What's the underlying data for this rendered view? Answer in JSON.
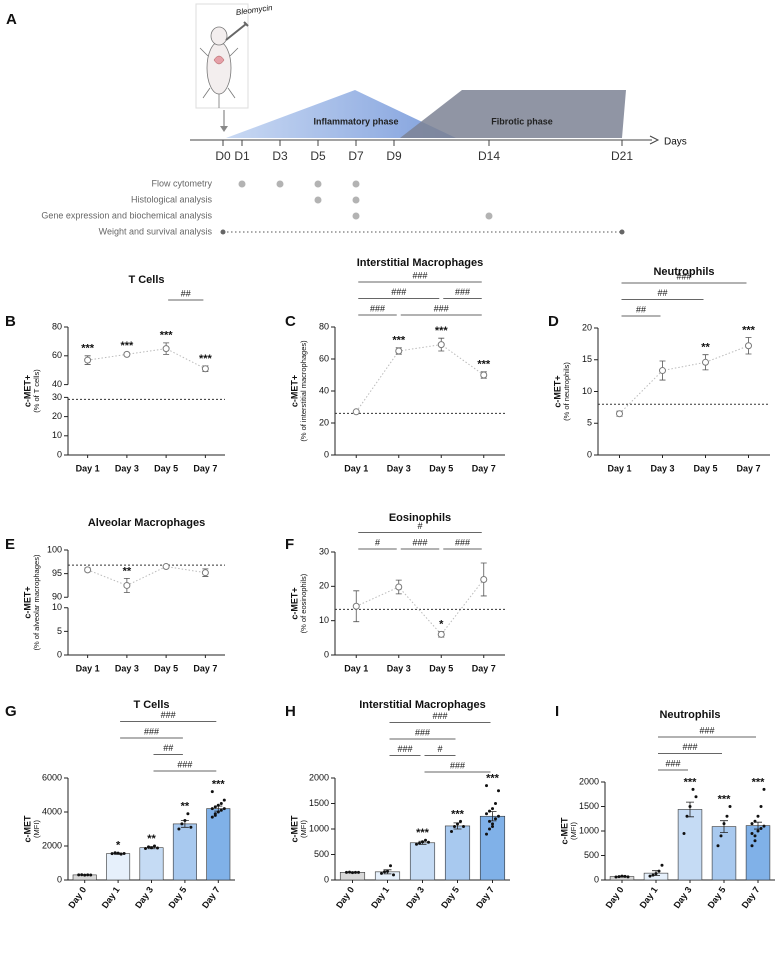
{
  "timeline": {
    "panel": "A",
    "annotation": "Bleomycin",
    "phases": [
      "Inflammatory phase",
      "Fibrotic phase"
    ],
    "axis_label": "Days",
    "days": [
      {
        "value": 0,
        "label": "D0"
      },
      {
        "value": 1,
        "label": "D1"
      },
      {
        "value": 3,
        "label": "D3"
      },
      {
        "value": 5,
        "label": "D5"
      },
      {
        "value": 7,
        "label": "D7"
      },
      {
        "value": 9,
        "label": "D9"
      },
      {
        "value": 14,
        "label": "D14"
      },
      {
        "value": 21,
        "label": "D21"
      }
    ],
    "assays": [
      {
        "label": "Flow cytometry",
        "days": [
          1,
          3,
          5,
          7
        ]
      },
      {
        "label": "Histological analysis",
        "days": [
          5,
          7
        ]
      },
      {
        "label": "Gene expression and biochemical analysis",
        "days": [
          7,
          14
        ]
      },
      {
        "label": "Weight and survival analysis",
        "span": [
          0,
          21
        ]
      }
    ]
  },
  "chart_data": [
    {
      "type": "line",
      "panel": "B",
      "title": "T Cells",
      "ylabel": "c-MET+",
      "ylabel_sub": "(% of T cells)",
      "color": "#7a7a7a",
      "categories": [
        "Day 1",
        "Day 3",
        "Day 5",
        "Day 7"
      ],
      "values": [
        57,
        61,
        65,
        51
      ],
      "errors": [
        3,
        1,
        4,
        2
      ],
      "annotations": [
        "***",
        "***",
        "***",
        "***"
      ],
      "ylim": [
        0,
        80
      ],
      "y_break": [
        30,
        40
      ],
      "yticks": [
        0,
        10,
        20,
        30,
        40,
        60,
        80
      ],
      "ref_line": 29,
      "comparisons": [
        [
          {
            "from": "Day 5",
            "to": "Day 7",
            "label": "##"
          }
        ]
      ]
    },
    {
      "type": "line",
      "panel": "C",
      "title": "Interstitial Macrophages",
      "ylabel": "c-MET+",
      "ylabel_sub": "(% of interstitial macrophages)",
      "color": "#7a7a7a",
      "categories": [
        "Day 1",
        "Day 3",
        "Day 5",
        "Day 7"
      ],
      "values": [
        27,
        65,
        69,
        50
      ],
      "errors": [
        0.5,
        2,
        4,
        2
      ],
      "annotations": [
        null,
        "***",
        "***",
        "***"
      ],
      "ylim": [
        0,
        80
      ],
      "yticks": [
        0,
        20,
        40,
        60,
        80
      ],
      "ref_line": 26,
      "comparisons": [
        [
          {
            "from": "Day 1",
            "to": "Day 7",
            "label": "###"
          }
        ],
        [
          {
            "from": "Day 1",
            "to": "Day 5",
            "label": "###"
          },
          {
            "from": "Day 5",
            "to": "Day 7",
            "label": "###"
          }
        ],
        [
          {
            "from": "Day 1",
            "to": "Day 3",
            "label": "###"
          },
          {
            "from": "Day 3",
            "to": "Day 7",
            "label": "###"
          }
        ]
      ]
    },
    {
      "type": "line",
      "panel": "D",
      "title": "Neutrophils",
      "ylabel": "c-MET+",
      "ylabel_sub": "(% of neutrophils)",
      "color": "#7a7a7a",
      "categories": [
        "Day 1",
        "Day 3",
        "Day 5",
        "Day 7"
      ],
      "values": [
        6.5,
        13.3,
        14.6,
        17.2
      ],
      "errors": [
        0.4,
        1.5,
        1.2,
        1.3
      ],
      "annotations": [
        null,
        null,
        "**",
        "***"
      ],
      "ylim": [
        0,
        20
      ],
      "yticks": [
        0,
        5,
        10,
        15,
        20
      ],
      "ref_line": 8,
      "comparisons": [
        [
          {
            "from": "Day 1",
            "to": "Day 7",
            "label": "###"
          }
        ],
        [
          {
            "from": "Day 1",
            "to": "Day 5",
            "label": "##"
          }
        ],
        [
          {
            "from": "Day 1",
            "to": "Day 3",
            "label": "##"
          }
        ]
      ]
    },
    {
      "type": "line",
      "panel": "E",
      "title": "Alveolar Macrophages",
      "ylabel": "c-MET+",
      "ylabel_sub": "(% of alveolar macrophages)",
      "color": "#7a7a7a",
      "categories": [
        "Day 1",
        "Day 3",
        "Day 5",
        "Day 7"
      ],
      "values": [
        95.8,
        92.5,
        96.5,
        95.2
      ],
      "errors": [
        0.4,
        1.5,
        0.2,
        0.8
      ],
      "annotations": [
        null,
        "**",
        null,
        null
      ],
      "ylim": [
        0,
        100
      ],
      "y_break": [
        10,
        90
      ],
      "yticks": [
        0,
        5,
        10,
        90,
        95,
        100
      ],
      "ref_line": 96.8,
      "comparisons": []
    },
    {
      "type": "line",
      "panel": "F",
      "title": "Eosinophils",
      "ylabel": "c-MET+",
      "ylabel_sub": "(% of eosinophils)",
      "color": "#7a7a7a",
      "categories": [
        "Day 1",
        "Day 3",
        "Day 5",
        "Day 7"
      ],
      "values": [
        14.2,
        19.8,
        6,
        22
      ],
      "errors": [
        4.5,
        2,
        0.8,
        4.8
      ],
      "annotations": [
        null,
        null,
        "*",
        null
      ],
      "ylim": [
        0,
        30
      ],
      "yticks": [
        0,
        10,
        20,
        30
      ],
      "ref_line": 13.3,
      "comparisons": [
        [
          {
            "from": "Day 1",
            "to": "Day 7",
            "label": "#"
          }
        ],
        [
          {
            "from": "Day 1",
            "to": "Day 3",
            "label": "#"
          },
          {
            "from": "Day 3",
            "to": "Day 5",
            "label": "###"
          },
          {
            "from": "Day 5",
            "to": "Day 7",
            "label": "###"
          }
        ]
      ]
    },
    {
      "type": "bar",
      "panel": "G",
      "title": "T Cells",
      "ylabel": "c-MET",
      "ylabel_sub": "(MFI)",
      "colors": [
        "#d9d9d9",
        "#e6f0fb",
        "#c5dbf4",
        "#a8c9ef",
        "#80b1e8"
      ],
      "categories": [
        "Day 0",
        "Day 1",
        "Day 3",
        "Day 5",
        "Day 7"
      ],
      "values": [
        300,
        1550,
        1900,
        3300,
        4200
      ],
      "errors": [
        10,
        40,
        60,
        200,
        150
      ],
      "points": [
        [
          300,
          310,
          290,
          305,
          295
        ],
        [
          1550,
          1600,
          1580,
          1520,
          1560
        ],
        [
          1850,
          1950,
          1900,
          2000,
          1880
        ],
        [
          3000,
          3300,
          3500,
          3900,
          3100
        ],
        [
          3700,
          3900,
          4000,
          4100,
          4200,
          4200,
          4300,
          4400,
          4500,
          4700,
          5200,
          3800
        ]
      ],
      "annotations": [
        null,
        "*",
        "**",
        "**",
        "***"
      ],
      "ylim": [
        0,
        6000
      ],
      "yticks": [
        0,
        2000,
        4000,
        6000
      ],
      "comparisons": [
        [
          {
            "from": "Day 1",
            "to": "Day 7",
            "label": "###"
          }
        ],
        [
          {
            "from": "Day 1",
            "to": "Day 5",
            "label": "###"
          }
        ],
        [
          {
            "from": "Day 3",
            "to": "Day 5",
            "label": "##"
          }
        ],
        [
          {
            "from": "Day 3",
            "to": "Day 7",
            "label": "###"
          }
        ]
      ]
    },
    {
      "type": "bar",
      "panel": "H",
      "title": "Interstitial Macrophages",
      "ylabel": "c-MET",
      "ylabel_sub": "(MFI)",
      "colors": [
        "#d9d9d9",
        "#e6f0fb",
        "#c5dbf4",
        "#a8c9ef",
        "#80b1e8"
      ],
      "categories": [
        "Day 0",
        "Day 1",
        "Day 3",
        "Day 5",
        "Day 7"
      ],
      "values": [
        150,
        160,
        730,
        1060,
        1250
      ],
      "errors": [
        10,
        40,
        30,
        60,
        90
      ],
      "points": [
        [
          150,
          155,
          145,
          150,
          150
        ],
        [
          130,
          160,
          170,
          280,
          100
        ],
        [
          700,
          720,
          750,
          780,
          740
        ],
        [
          950,
          1050,
          1100,
          1150,
          1050
        ],
        [
          900,
          1000,
          1100,
          1200,
          1250,
          1300,
          1350,
          1400,
          1500,
          1750,
          1850,
          1150,
          1050
        ]
      ],
      "annotations": [
        null,
        null,
        "***",
        "***",
        "***"
      ],
      "ylim": [
        0,
        2000
      ],
      "yticks": [
        0,
        500,
        1000,
        1500,
        2000
      ],
      "comparisons": [
        [
          {
            "from": "Day 1",
            "to": "Day 7",
            "label": "###"
          }
        ],
        [
          {
            "from": "Day 1",
            "to": "Day 5",
            "label": "###"
          }
        ],
        [
          {
            "from": "Day 1",
            "to": "Day 3",
            "label": "###"
          },
          {
            "from": "Day 3",
            "to": "Day 5",
            "label": "#"
          }
        ],
        [
          {
            "from": "Day 3",
            "to": "Day 7",
            "label": "###"
          }
        ]
      ]
    },
    {
      "type": "bar",
      "panel": "I",
      "title": "Neutrophils",
      "ylabel": "c-MET",
      "ylabel_sub": "(MFI)",
      "colors": [
        "#d9d9d9",
        "#e6f0fb",
        "#c5dbf4",
        "#a8c9ef",
        "#80b1e8"
      ],
      "categories": [
        "Day 0",
        "Day 1",
        "Day 3",
        "Day 5",
        "Day 7"
      ],
      "values": [
        70,
        140,
        1440,
        1090,
        1110
      ],
      "errors": [
        10,
        50,
        150,
        120,
        70
      ],
      "points": [
        [
          60,
          70,
          80,
          75,
          65
        ],
        [
          80,
          100,
          130,
          180,
          300
        ],
        [
          950,
          1300,
          1500,
          1850,
          1700
        ],
        [
          700,
          900,
          1150,
          1300,
          1500
        ],
        [
          700,
          900,
          1000,
          1050,
          1100,
          1150,
          1200,
          1300,
          1500,
          1850,
          950,
          800
        ]
      ],
      "annotations": [
        null,
        null,
        "***",
        "***",
        "***"
      ],
      "ylim": [
        0,
        2000
      ],
      "yticks": [
        0,
        500,
        1000,
        1500,
        2000
      ],
      "comparisons": [
        [
          {
            "from": "Day 1",
            "to": "Day 7",
            "label": "###"
          }
        ],
        [
          {
            "from": "Day 1",
            "to": "Day 5",
            "label": "###"
          }
        ],
        [
          {
            "from": "Day 1",
            "to": "Day 3",
            "label": "###"
          }
        ]
      ]
    }
  ]
}
